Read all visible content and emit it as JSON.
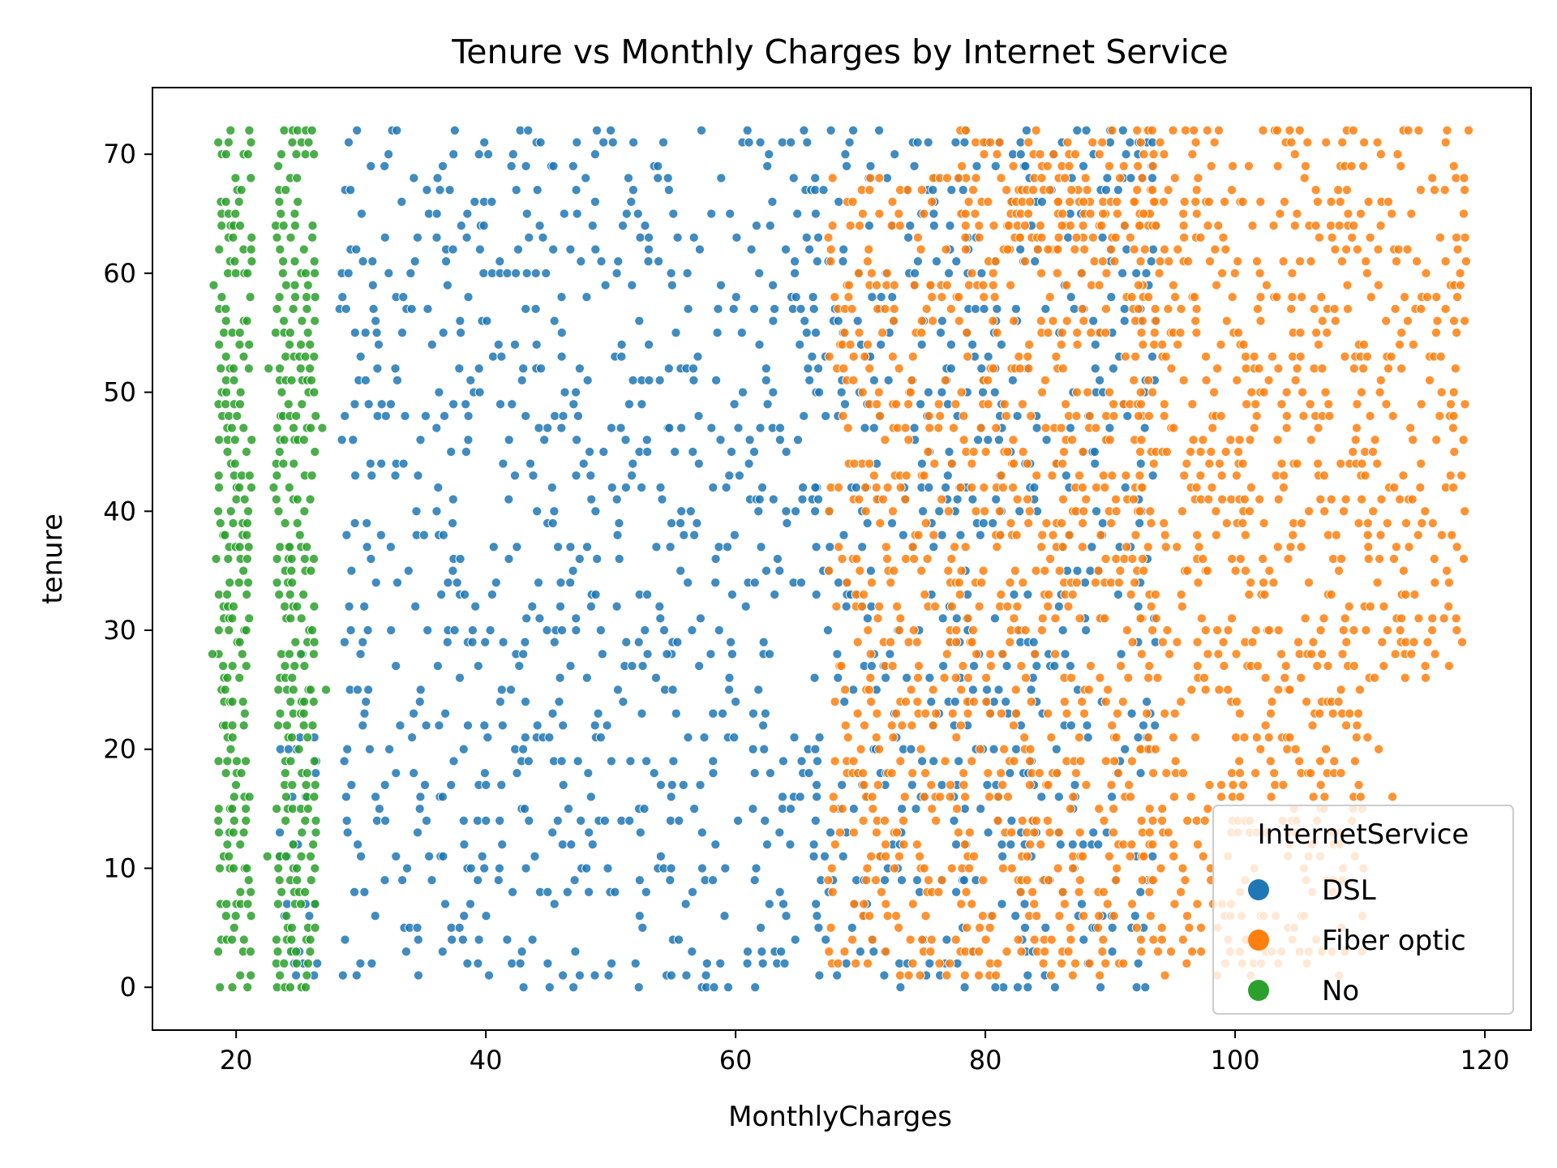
{
  "chart_data": {
    "type": "scatter",
    "title": "Tenure vs Monthly Charges by Internet Service",
    "xlabel": "MonthlyCharges",
    "ylabel": "tenure",
    "xlim": [
      13.3,
      123.7
    ],
    "ylim": [
      -3.6,
      75.6
    ],
    "xticks": [
      20,
      40,
      60,
      80,
      100,
      120
    ],
    "yticks": [
      0,
      10,
      20,
      30,
      40,
      50,
      60,
      70
    ],
    "grid": false,
    "legend": {
      "title": "InternetService",
      "placement": "lower right",
      "entries": [
        "DSL",
        "Fiber optic",
        "No"
      ]
    },
    "series": [
      {
        "name": "DSL",
        "color": "#1f77b4",
        "bands": [
          [
            23.5,
            26.5,
            1,
            25
          ],
          [
            28.5,
            66.5,
            0,
            72
          ],
          [
            66.5,
            78,
            1,
            72
          ],
          [
            78,
            93.5,
            0,
            72
          ]
        ],
        "points": [
          [
            24.2,
            20
          ],
          [
            24.8,
            1
          ],
          [
            25.3,
            28
          ],
          [
            45.3,
            42
          ],
          [
            50,
            72
          ],
          [
            54.5,
            28
          ],
          [
            60.5,
            55
          ],
          [
            62.1,
            3
          ],
          [
            73.2,
            0
          ],
          [
            80.8,
            0
          ],
          [
            83.2,
            69
          ],
          [
            85.3,
            67
          ]
        ]
      },
      {
        "name": "Fiber optic",
        "color": "#ff7f0e",
        "bands": [
          [
            67.6,
            92.5,
            1,
            68
          ],
          [
            78,
            93.5,
            62,
            72
          ],
          [
            92.5,
            110.5,
            1,
            72
          ],
          [
            110.5,
            118.7,
            26,
            72
          ]
        ],
        "points": [
          [
            68.2,
            2
          ],
          [
            69,
            21
          ],
          [
            69.5,
            44
          ],
          [
            110.6,
            21
          ],
          [
            111.5,
            20
          ],
          [
            112.2,
            30
          ],
          [
            113.5,
            35
          ],
          [
            112.6,
            16
          ],
          [
            116,
            34
          ],
          [
            117.5,
            48
          ],
          [
            118.5,
            61
          ],
          [
            118.7,
            72
          ],
          [
            114.2,
            41
          ]
        ]
      },
      {
        "name": "No",
        "color": "#2ca02c",
        "bands": [
          [
            18.8,
            21.2,
            0,
            72
          ],
          [
            23.4,
            26.6,
            0,
            72
          ]
        ],
        "points": [
          [
            18.2,
            59
          ],
          [
            18.1,
            28
          ],
          [
            18.4,
            36
          ],
          [
            22.6,
            52
          ],
          [
            23,
            42
          ],
          [
            22.5,
            11
          ],
          [
            26.9,
            47
          ],
          [
            27.2,
            25
          ]
        ]
      }
    ]
  }
}
